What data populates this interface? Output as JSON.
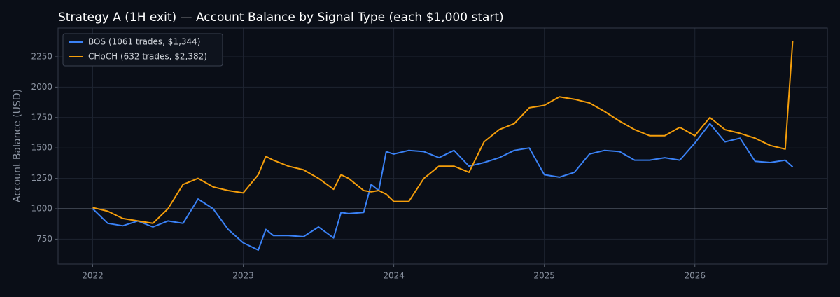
{
  "chart_data": {
    "type": "line",
    "title": "Strategy A (1H exit) — Account Balance by Signal Type (each $1,000 start)",
    "y_label": "Account Balance (USD)",
    "x": [
      2022.0,
      2022.1,
      2022.2,
      2022.3,
      2022.4,
      2022.5,
      2022.6,
      2022.7,
      2022.8,
      2022.9,
      2023.0,
      2023.1,
      2023.15,
      2023.2,
      2023.3,
      2023.4,
      2023.5,
      2023.6,
      2023.65,
      2023.7,
      2023.8,
      2023.85,
      2023.9,
      2023.95,
      2024.0,
      2024.1,
      2024.2,
      2024.3,
      2024.4,
      2024.5,
      2024.6,
      2024.7,
      2024.8,
      2024.9,
      2025.0,
      2025.1,
      2025.2,
      2025.3,
      2025.4,
      2025.5,
      2025.6,
      2025.7,
      2025.8,
      2025.9,
      2026.0,
      2026.1,
      2026.2,
      2026.3,
      2026.4,
      2026.5,
      2026.6,
      2026.65
    ],
    "series": [
      {
        "name": "BOS (1061 trades, $1,344)",
        "color": "#3b82f6",
        "values": [
          1000,
          880,
          860,
          900,
          850,
          900,
          880,
          1080,
          1000,
          830,
          720,
          660,
          830,
          780,
          780,
          770,
          850,
          760,
          970,
          960,
          970,
          1200,
          1150,
          1470,
          1450,
          1480,
          1470,
          1420,
          1480,
          1350,
          1380,
          1420,
          1480,
          1500,
          1280,
          1260,
          1300,
          1450,
          1480,
          1470,
          1400,
          1400,
          1420,
          1400,
          1540,
          1700,
          1550,
          1580,
          1390,
          1380,
          1400,
          1344
        ]
      },
      {
        "name": "CHoCH (632 trades, $2,382)",
        "color": "#f59e0b",
        "values": [
          1010,
          980,
          920,
          900,
          880,
          1000,
          1200,
          1250,
          1180,
          1150,
          1130,
          1280,
          1430,
          1400,
          1350,
          1320,
          1250,
          1160,
          1280,
          1250,
          1150,
          1140,
          1150,
          1120,
          1060,
          1060,
          1250,
          1350,
          1350,
          1300,
          1550,
          1650,
          1700,
          1830,
          1850,
          1920,
          1900,
          1870,
          1800,
          1720,
          1650,
          1600,
          1600,
          1670,
          1600,
          1750,
          1650,
          1620,
          1580,
          1520,
          1490,
          2382
        ]
      }
    ],
    "xlim": [
      2021.77,
      2026.88
    ],
    "xticks": [
      2022,
      2023,
      2024,
      2025,
      2026
    ],
    "ylim": [
      545,
      2486
    ],
    "yticks": [
      750,
      1000,
      1250,
      1500,
      1750,
      2000,
      2250
    ],
    "hline": 1000,
    "grid": true,
    "legend": "upper-left"
  }
}
